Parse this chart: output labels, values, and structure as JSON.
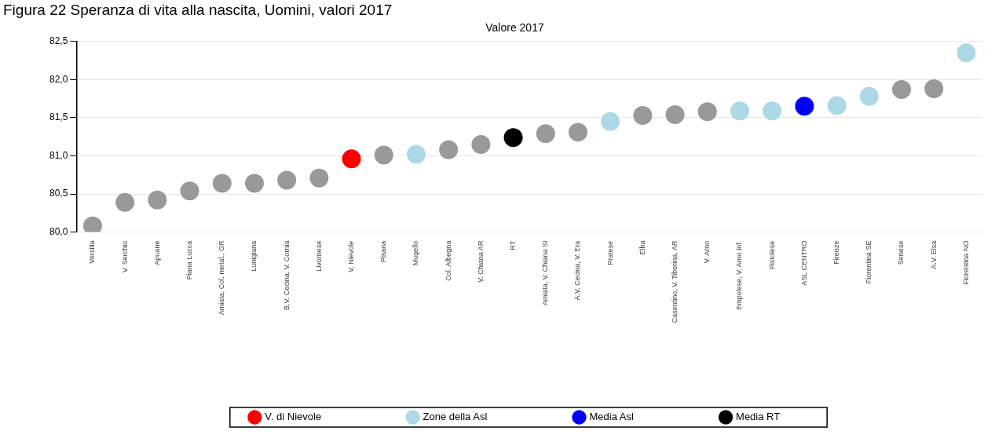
{
  "chart_data": {
    "type": "scatter",
    "title": "Figura 22 Speranza di vita alla nascita, Uomini, valori 2017",
    "subtitle": "Valore 2017",
    "categories": [
      "Versilia",
      "V. Serchio",
      "Apuane",
      "Piana Lucca",
      "Amiata, Col. metal., GR",
      "Lunigiana",
      "B.V. Cecina, V. Cornia",
      "Livornese",
      "V. Nievole",
      "Pisana",
      "Mugello",
      "Col. Albegna",
      "V. Chiana AR",
      "RT",
      "Amiata, V. Chiana SI",
      "A.V. Cecina, V. Era",
      "Pratese",
      "Elba",
      "Casentino, V. Tiberina, AR",
      "V. Arno",
      "Empolese, V. Arno inf.",
      "Pistoiese",
      "ASL CENTRO",
      "Firenze",
      "Fiorentina SE",
      "Senese",
      "A.V. Elsa",
      "Fiorentina NO"
    ],
    "series": [
      {
        "color": "#999999",
        "values": [
          80.08,
          80.39,
          80.42,
          80.54,
          80.64,
          80.64,
          80.68,
          80.71,
          null,
          81.01,
          null,
          81.08,
          81.15,
          null,
          81.29,
          81.31,
          null,
          81.53,
          81.54,
          81.58,
          null,
          null,
          null,
          null,
          null,
          81.87,
          81.88,
          null
        ]
      },
      {
        "name": "V. di Nievole",
        "color": "#ff0000",
        "values": [
          null,
          null,
          null,
          null,
          null,
          null,
          null,
          null,
          80.96,
          null,
          null,
          null,
          null,
          null,
          null,
          null,
          null,
          null,
          null,
          null,
          null,
          null,
          null,
          null,
          null,
          null,
          null,
          null
        ]
      },
      {
        "name": "Zone della Asl",
        "color": "#add8e6",
        "values": [
          null,
          null,
          null,
          null,
          null,
          null,
          null,
          null,
          null,
          null,
          81.02,
          null,
          null,
          null,
          null,
          null,
          81.45,
          null,
          null,
          null,
          81.59,
          81.59,
          null,
          81.66,
          81.78,
          null,
          null,
          82.35
        ]
      },
      {
        "name": "Media Asl",
        "color": "#0000ff",
        "values": [
          null,
          null,
          null,
          null,
          null,
          null,
          null,
          null,
          null,
          null,
          null,
          null,
          null,
          null,
          null,
          null,
          null,
          null,
          null,
          null,
          null,
          null,
          81.65,
          null,
          null,
          null,
          null,
          null
        ]
      },
      {
        "name": "Media RT",
        "color": "#000000",
        "values": [
          null,
          null,
          null,
          null,
          null,
          null,
          null,
          null,
          null,
          null,
          null,
          null,
          null,
          81.24,
          null,
          null,
          null,
          null,
          null,
          null,
          null,
          null,
          null,
          null,
          null,
          null,
          null,
          null
        ]
      }
    ],
    "ylim": [
      80.0,
      82.5
    ],
    "yticks": [
      {
        "value": 80.0,
        "label": "80,0"
      },
      {
        "value": 80.5,
        "label": "80,5"
      },
      {
        "value": 81.0,
        "label": "81,0"
      },
      {
        "value": 81.5,
        "label": "81,5"
      },
      {
        "value": 82.0,
        "label": "82,0"
      },
      {
        "value": 82.5,
        "label": "82,5"
      }
    ],
    "grid": "y",
    "legend": "bottom",
    "marker": "circle"
  }
}
